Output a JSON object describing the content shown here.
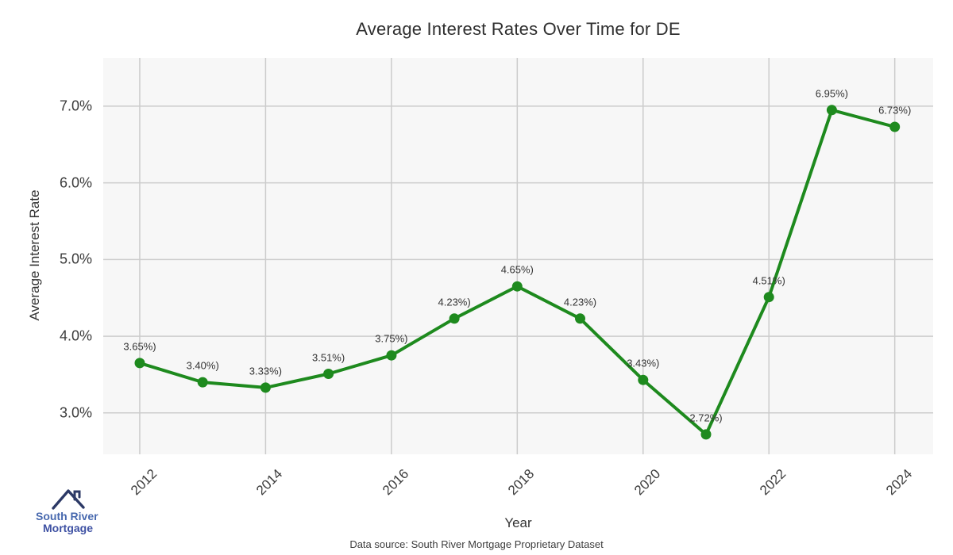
{
  "chart_data": {
    "type": "line",
    "title": "Average Interest Rates Over Time for DE",
    "xlabel": "Year",
    "ylabel": "Average Interest Rate",
    "x": [
      2012,
      2013,
      2014,
      2015,
      2016,
      2017,
      2018,
      2019,
      2020,
      2021,
      2022,
      2023,
      2024
    ],
    "values": [
      3.65,
      3.4,
      3.33,
      3.51,
      3.75,
      4.23,
      4.65,
      4.23,
      3.43,
      2.72,
      4.51,
      6.95,
      6.73
    ],
    "point_labels": [
      "3.65%)",
      "3.40%)",
      "3.33%)",
      "3.51%)",
      "3.75%)",
      "4.23%)",
      "4.65%)",
      "4.23%)",
      "3.43%)",
      "2.72%)",
      "4.51%)",
      "6.95%)",
      "6.73%)"
    ],
    "x_tick_values": [
      2012,
      2014,
      2016,
      2018,
      2020,
      2022,
      2024
    ],
    "x_tick_labels": [
      "2012",
      "2014",
      "2016",
      "2018",
      "2020",
      "2022",
      "2024"
    ],
    "y_tick_values": [
      3,
      4,
      5,
      6,
      7
    ],
    "y_tick_labels": [
      "3.0%",
      "4.0%",
      "5.0%",
      "6.0%",
      "7.0%"
    ],
    "xlim": [
      2011.42,
      2024.61
    ],
    "ylim": [
      2.46,
      7.63
    ],
    "grid": true,
    "legend": false,
    "line_color": "#1e8a1e",
    "marker_color": "#1e8a1e",
    "plot_bg": "#f7f7f7",
    "grid_color": "#cccccc"
  },
  "footer": {
    "data_source": "Data source: South River Mortgage Proprietary Dataset"
  },
  "logo": {
    "line1": "South River",
    "line2": "Mortgage",
    "roof_color": "#2c3966",
    "line1_color": "#4768ae",
    "line2_color": "#3e51a3"
  }
}
